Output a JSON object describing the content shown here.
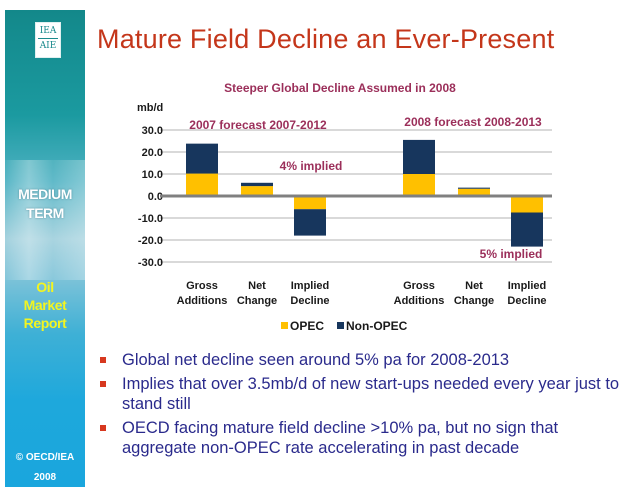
{
  "slide": {
    "title": "Mature Field Decline an Ever-Present",
    "sidebar": {
      "logo_top": "IEA",
      "logo_bottom": "AIE",
      "heading_line1": "MEDIUM",
      "heading_line2": "TERM",
      "product_line1": "Oil",
      "product_line2": "Market",
      "product_line3": "Report",
      "copyright": "© OECD/IEA",
      "year": "2008"
    },
    "bullets": [
      "Global net decline seen around 5% pa for 2008-2013",
      "Implies that over 3.5mb/d of new start-ups needed every year just to stand still",
      "OECD facing mature field decline >10% pa, but no sign that aggregate non-OPEC rate accelerating in past decade"
    ]
  },
  "chart_data": {
    "type": "bar",
    "stacked": true,
    "title": "Steeper Global Decline Assumed in 2008",
    "ylabel": "mb/d",
    "xlabel": "",
    "ylim": [
      -30,
      30
    ],
    "yticks": [
      30,
      20,
      10,
      0,
      -10,
      -20,
      -30
    ],
    "ytick_labels": [
      "30.0",
      "20.0",
      "10.0",
      "0.0",
      "-10.0",
      "-20.0",
      "-30.0"
    ],
    "grid": true,
    "groups": [
      {
        "label": "2007 forecast 2007-2012",
        "annotation": "4% implied",
        "categories": [
          [
            "Gross",
            "Additions"
          ],
          [
            "Net",
            "Change"
          ],
          [
            "Implied",
            "Decline"
          ]
        ]
      },
      {
        "label": "2008 forecast 2008-2013",
        "annotation": "5% implied",
        "categories": [
          [
            "Gross",
            "Additions"
          ],
          [
            "Net",
            "Change"
          ],
          [
            "Implied",
            "Decline"
          ]
        ]
      }
    ],
    "series": [
      {
        "name": "OPEC",
        "color": "#ffc000",
        "values": [
          [
            10.2,
            4.5,
            -6.0
          ],
          [
            10.0,
            3.3,
            -7.5
          ]
        ]
      },
      {
        "name": "Non-OPEC",
        "color": "#17365d",
        "values": [
          [
            13.6,
            1.5,
            -12.0
          ],
          [
            15.5,
            0.5,
            -15.5
          ]
        ]
      }
    ],
    "legend": {
      "position": "bottom",
      "entries": [
        "OPEC",
        "Non-OPEC"
      ]
    }
  }
}
